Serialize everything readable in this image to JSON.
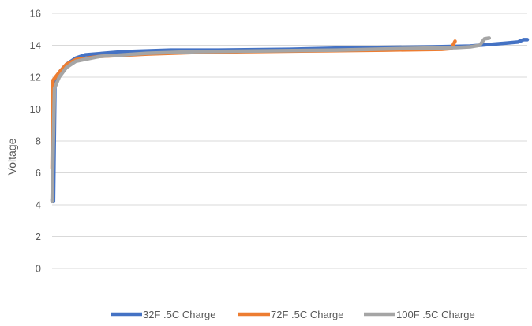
{
  "chart_data": {
    "type": "line",
    "title": "",
    "xlabel": "",
    "ylabel": "Voltage",
    "ylim": [
      0,
      16
    ],
    "yticks": [
      0,
      2,
      4,
      6,
      8,
      10,
      12,
      14,
      16
    ],
    "xlim": [
      0,
      100
    ],
    "grid": true,
    "legend": "bottom",
    "series": [
      {
        "name": "32F .5C Charge",
        "color": "#4472c4",
        "points": [
          [
            0,
            4.3
          ],
          [
            0.3,
            4.2
          ],
          [
            0.6,
            11.5
          ],
          [
            1.5,
            12.3
          ],
          [
            3,
            12.8
          ],
          [
            5,
            13.2
          ],
          [
            7,
            13.4
          ],
          [
            15,
            13.6
          ],
          [
            25,
            13.7
          ],
          [
            35,
            13.7
          ],
          [
            50,
            13.75
          ],
          [
            65,
            13.85
          ],
          [
            80,
            13.9
          ],
          [
            88,
            13.95
          ],
          [
            92,
            14.05
          ],
          [
            94,
            14.1
          ],
          [
            96,
            14.15
          ],
          [
            98,
            14.2
          ],
          [
            99.2,
            14.35
          ],
          [
            100,
            14.35
          ]
        ]
      },
      {
        "name": "72F .5C Charge",
        "color": "#ed7d31",
        "points": [
          [
            0,
            6.3
          ],
          [
            0.2,
            11.8
          ],
          [
            1.5,
            12.3
          ],
          [
            3,
            12.8
          ],
          [
            5,
            13.1
          ],
          [
            10,
            13.3
          ],
          [
            20,
            13.45
          ],
          [
            30,
            13.55
          ],
          [
            40,
            13.6
          ],
          [
            55,
            13.65
          ],
          [
            70,
            13.7
          ],
          [
            82,
            13.75
          ],
          [
            84,
            13.8
          ],
          [
            84.8,
            14.25
          ]
        ]
      },
      {
        "name": "100F .5C Charge",
        "color": "#a5a5a5",
        "points": [
          [
            0,
            4.2
          ],
          [
            0.5,
            11.3
          ],
          [
            1.5,
            12.0
          ],
          [
            3,
            12.6
          ],
          [
            5,
            13.0
          ],
          [
            10,
            13.3
          ],
          [
            20,
            13.5
          ],
          [
            30,
            13.6
          ],
          [
            45,
            13.65
          ],
          [
            60,
            13.7
          ],
          [
            75,
            13.8
          ],
          [
            85,
            13.85
          ],
          [
            88,
            13.9
          ],
          [
            90,
            14.0
          ],
          [
            91,
            14.4
          ],
          [
            92,
            14.45
          ]
        ]
      }
    ]
  }
}
